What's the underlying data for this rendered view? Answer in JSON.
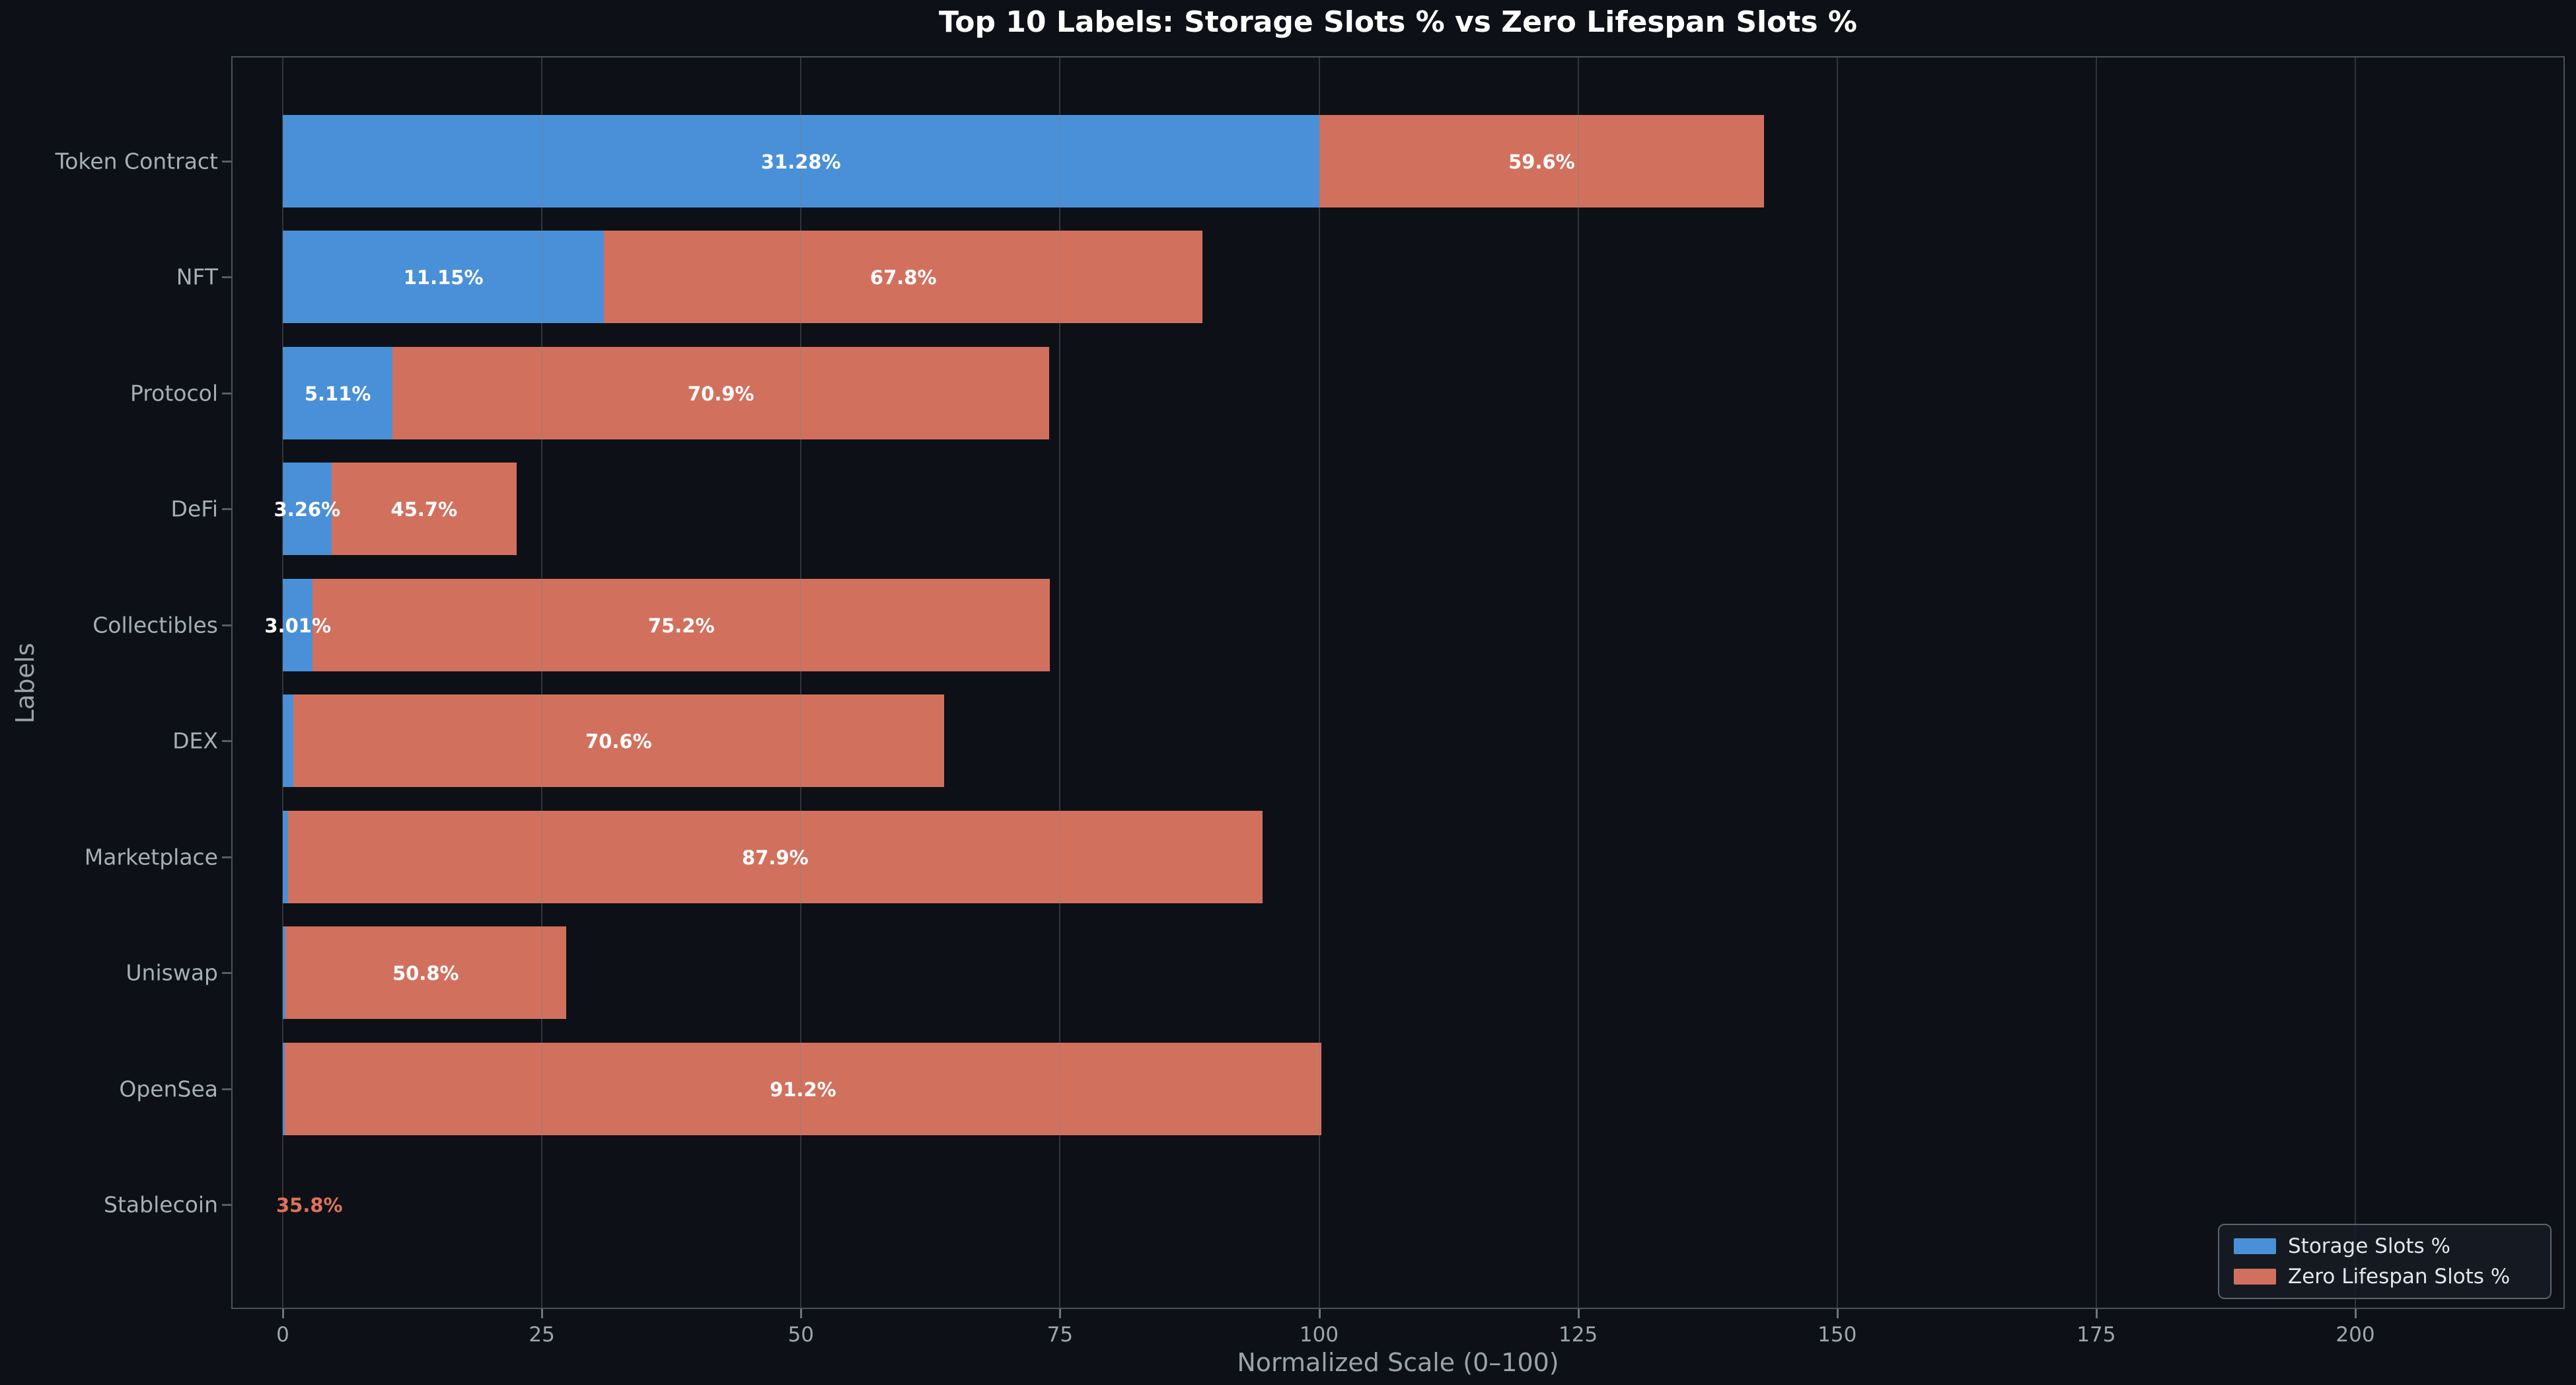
{
  "colors": {
    "background": "#0d1117",
    "storage": "#4a90d8",
    "zero": "#d2705e",
    "outside_label": "#e07259",
    "grid": "rgba(128,128,128,0.32)",
    "spine": "#4a515b",
    "title_text": "#ffffff",
    "tick_text": "#9da5ae",
    "category_text": "#a6aeb7",
    "axis_label_text": "#9aa2ac",
    "legend_text": "#e2e5e9"
  },
  "legend": {
    "items": [
      {
        "label": "Storage Slots %",
        "color": "#4a90d8"
      },
      {
        "label": "Zero Lifespan Slots %",
        "color": "#d2705e"
      }
    ]
  },
  "chart_data": {
    "type": "bar",
    "orientation": "horizontal",
    "stacked": true,
    "title": "Top 10 Labels: Storage Slots % vs Zero Lifespan Slots %",
    "xlabel": "Normalized Scale (0–100)",
    "ylabel": "Labels",
    "categories": [
      "Token Contract",
      "NFT",
      "Protocol",
      "DeFi",
      "Collectibles",
      "DEX",
      "Marketplace",
      "Uniswap",
      "OpenSea",
      "Stablecoin"
    ],
    "series": [
      {
        "name": "Storage Slots %",
        "values_pct": [
          31.28,
          11.15,
          5.11,
          3.26,
          3.01,
          null,
          null,
          null,
          null,
          null
        ],
        "labels": [
          "31.28%",
          "11.15%",
          "5.11%",
          "3.26%",
          "3.01%",
          null,
          null,
          null,
          null,
          null
        ],
        "normalized_lengths": [
          100,
          31,
          10.6,
          4.7,
          2.9,
          1.0,
          0.5,
          0.25,
          0.2,
          0
        ]
      },
      {
        "name": "Zero Lifespan Slots %",
        "values_pct": [
          59.6,
          67.8,
          70.9,
          45.7,
          75.2,
          70.6,
          87.9,
          50.8,
          91.2,
          35.8
        ],
        "labels": [
          "59.6%",
          "67.8%",
          "70.9%",
          "45.7%",
          "75.2%",
          "70.6%",
          "87.9%",
          "50.8%",
          "91.2%",
          "35.8%"
        ],
        "normalized_lengths": [
          42.96,
          57.76,
          63.36,
          17.87,
          71.12,
          62.82,
          94.04,
          27.08,
          100,
          0
        ]
      }
    ],
    "x_ticks": [
      0,
      25,
      50,
      75,
      100,
      125,
      150,
      175,
      200
    ],
    "xlim_units": [
      -5,
      220
    ],
    "grid": "vertical, drawn above bars",
    "legend_position": "lower right"
  }
}
